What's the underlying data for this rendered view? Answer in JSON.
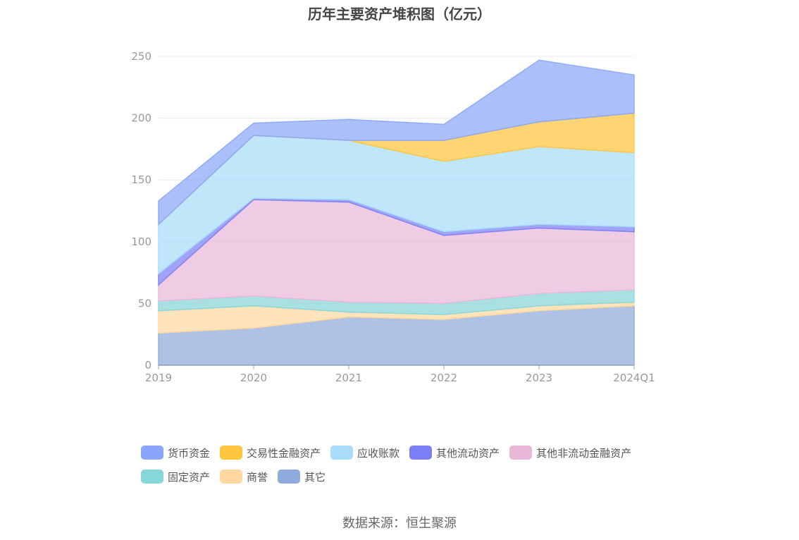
{
  "chart_data": {
    "type": "area",
    "stacked": true,
    "title": "历年主要资产堆积图（亿元）",
    "categories": [
      "2019",
      "2020",
      "2021",
      "2022",
      "2023",
      "2024Q1"
    ],
    "ylim": [
      0,
      250
    ],
    "yticks": [
      0,
      50,
      100,
      150,
      200,
      250
    ],
    "grid": true,
    "legend_position": "bottom",
    "series": [
      {
        "name": "其它",
        "color": "#8FAADC",
        "values": [
          26,
          30,
          39,
          37,
          44,
          48
        ]
      },
      {
        "name": "商誉",
        "color": "#FFD8A0",
        "values": [
          18,
          18,
          4,
          4,
          4,
          3
        ]
      },
      {
        "name": "固定资产",
        "color": "#88D6D8",
        "values": [
          8,
          8,
          8,
          9,
          10,
          10
        ]
      },
      {
        "name": "其他非流动金融资产",
        "color": "#E9B8D9",
        "values": [
          13,
          78,
          81,
          55,
          53,
          47
        ]
      },
      {
        "name": "其他流动资产",
        "color": "#7B7FF5",
        "values": [
          9,
          1,
          2,
          3,
          3,
          4
        ]
      },
      {
        "name": "应收账款",
        "color": "#A8DCF8",
        "values": [
          40,
          51,
          48,
          57,
          63,
          60
        ]
      },
      {
        "name": "交易性金融资产",
        "color": "#FFC53D",
        "values": [
          0,
          0,
          0,
          17,
          20,
          32
        ]
      },
      {
        "name": "货币资金",
        "color": "#8AA6FA",
        "values": [
          19,
          10,
          17,
          13,
          50,
          31
        ]
      }
    ]
  },
  "legend": [
    {
      "label": "货币资金",
      "color": "#8AA6FA"
    },
    {
      "label": "交易性金融资产",
      "color": "#FFC53D"
    },
    {
      "label": "应收账款",
      "color": "#A8DCF8"
    },
    {
      "label": "其他流动资产",
      "color": "#7B7FF5"
    },
    {
      "label": "其他非流动金融资产",
      "color": "#E9B8D9"
    },
    {
      "label": "固定资产",
      "color": "#88D6D8"
    },
    {
      "label": "商誉",
      "color": "#FFD8A0"
    },
    {
      "label": "其它",
      "color": "#8FAADC"
    }
  ],
  "source": "数据来源：恒生聚源"
}
